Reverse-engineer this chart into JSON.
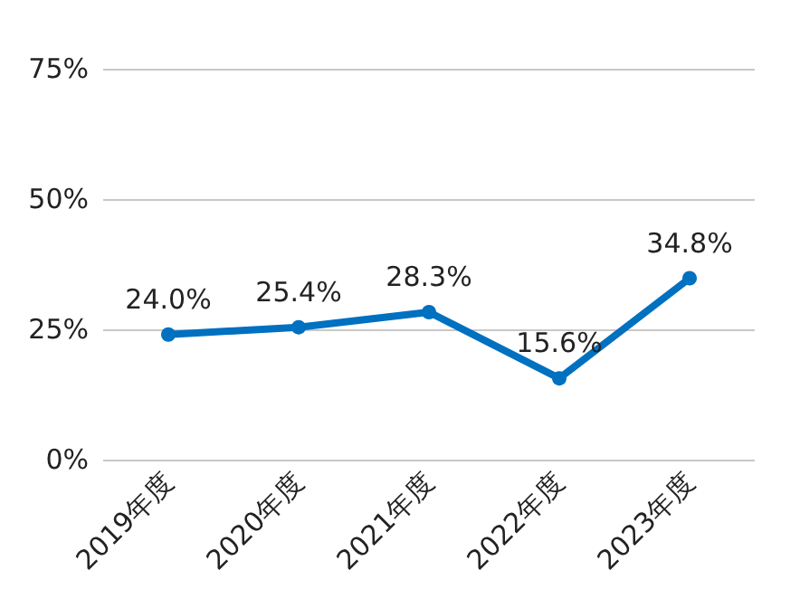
{
  "chart_data": {
    "type": "line",
    "categories": [
      "2019年度",
      "2020年度",
      "2021年度",
      "2022年度",
      "2023年度"
    ],
    "series": [
      {
        "color": "#0070c0",
        "values": [
          24.0,
          25.4,
          28.3,
          15.6,
          34.8
        ],
        "value_labels": [
          "24.0%",
          "25.4%",
          "28.3%",
          "15.6%",
          "34.8%"
        ]
      }
    ],
    "ylim": [
      0,
      75
    ],
    "yticks": [
      {
        "value": 0,
        "label": "0%"
      },
      {
        "value": 25,
        "label": "25%"
      },
      {
        "value": 50,
        "label": "50%"
      },
      {
        "value": 75,
        "label": "75%"
      }
    ],
    "grid": "y",
    "marker": "circle",
    "line_style": "solid"
  }
}
